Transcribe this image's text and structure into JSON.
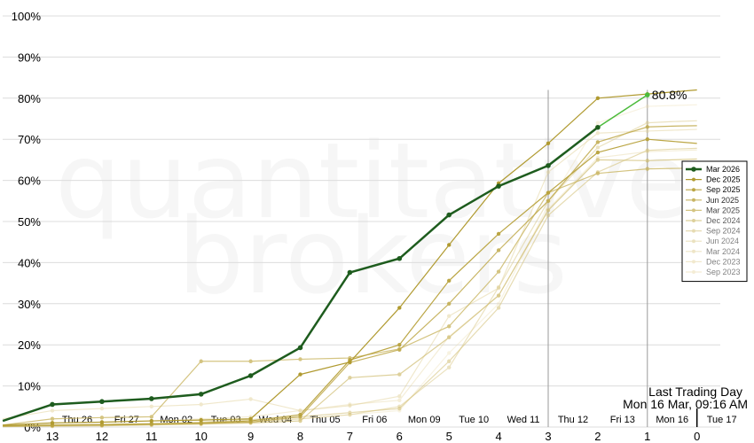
{
  "chart_data": {
    "type": "line",
    "watermark": [
      "quantitative",
      "brokers"
    ],
    "x_ticks": [
      "13",
      "12",
      "11",
      "10",
      "9",
      "8",
      "7",
      "6",
      "5",
      "4",
      "3",
      "2",
      "1",
      "0"
    ],
    "x_range": [
      13.9,
      -0.5
    ],
    "ylim": [
      0,
      100
    ],
    "y_ticks": [
      "0%",
      "10%",
      "20%",
      "30%",
      "40%",
      "50%",
      "60%",
      "70%",
      "80%",
      "90%",
      "100%"
    ],
    "day_labels": [
      {
        "x": 12.5,
        "label": "Thu 26"
      },
      {
        "x": 11.5,
        "label": "Fri 27"
      },
      {
        "x": 10.5,
        "label": "Mon 02"
      },
      {
        "x": 9.5,
        "label": "Tue 03"
      },
      {
        "x": 8.5,
        "label": "Wed 04"
      },
      {
        "x": 7.5,
        "label": "Thu 05"
      },
      {
        "x": 6.5,
        "label": "Fri 06"
      },
      {
        "x": 5.5,
        "label": "Mon 09"
      },
      {
        "x": 4.5,
        "label": "Tue 10"
      },
      {
        "x": 3.5,
        "label": "Wed 11"
      },
      {
        "x": 2.5,
        "label": "Thu 12"
      },
      {
        "x": 1.5,
        "label": "Fri 13"
      },
      {
        "x": 0.5,
        "label": "Mon 16"
      },
      {
        "x": -0.5,
        "label": "Tue 17"
      }
    ],
    "vlines": [
      3,
      1
    ],
    "last_trading_day": {
      "x": 0,
      "title": "Last Trading Day",
      "subtitle": "Mon 16 Mar, 09:16 AM"
    },
    "end_label": "80.8%",
    "series": [
      {
        "name": "Mar 2026",
        "color": "#1e5c1e",
        "bold": true,
        "x": [
          14,
          13,
          12,
          11,
          10,
          9,
          8,
          7,
          6,
          5,
          4,
          3,
          2,
          1
        ],
        "y": [
          1.5,
          5.5,
          6.2,
          6.9,
          8.0,
          12.5,
          19.3,
          37.6,
          41.0,
          51.6,
          58.6,
          63.6,
          72.9,
          80.8
        ],
        "last_segment_color": "#4cbb3c"
      },
      {
        "name": "Dec 2025",
        "color": "#b09a30",
        "opacity": 1.0,
        "x": [
          14,
          13,
          12,
          11,
          10,
          9,
          8,
          7,
          6,
          5,
          4,
          3,
          2,
          1,
          0.5,
          0
        ],
        "y": [
          0.5,
          1.0,
          1.2,
          1.5,
          1.7,
          2.0,
          12.8,
          15.8,
          29.0,
          44.3,
          59.3,
          69.0,
          80.0,
          81.0,
          81.5,
          82.0
        ]
      },
      {
        "name": "Sep 2025",
        "color": "#b8a23c",
        "opacity": 0.95,
        "x": [
          14,
          13,
          12,
          11,
          10,
          9,
          8,
          7,
          6,
          5,
          4,
          3,
          2,
          1,
          0.5,
          0
        ],
        "y": [
          0.3,
          0.5,
          0.6,
          0.8,
          1.0,
          1.5,
          3.0,
          16.3,
          20.0,
          35.6,
          47.0,
          57.0,
          66.8,
          70.0,
          69.5,
          69.0
        ]
      },
      {
        "name": "Jun 2025",
        "color": "#bfa94a",
        "opacity": 0.85,
        "x": [
          14,
          13,
          12,
          11,
          10,
          9,
          8,
          7,
          6,
          5,
          4,
          3,
          2,
          1,
          0.5,
          0
        ],
        "y": [
          0.2,
          0.4,
          0.5,
          0.7,
          0.9,
          1.2,
          2.5,
          15.7,
          18.8,
          30.0,
          43.0,
          55.0,
          69.3,
          73.0,
          73.2,
          73.3
        ]
      },
      {
        "name": "Mar 2025",
        "color": "#c6b158",
        "opacity": 0.75,
        "x": [
          14,
          13,
          12,
          11,
          10,
          9,
          8,
          7,
          6,
          5,
          4,
          3,
          2,
          1,
          0.5,
          0
        ],
        "y": [
          0.5,
          2.0,
          2.3,
          2.5,
          16.0,
          16.0,
          16.5,
          16.8,
          19.0,
          24.5,
          37.8,
          57.0,
          61.7,
          62.8,
          62.9,
          63.0
        ]
      },
      {
        "name": "Dec 2024",
        "color": "#ccb866",
        "opacity": 0.65,
        "x": [
          14,
          13,
          12,
          11,
          10,
          9,
          8,
          7,
          6,
          5,
          4,
          3,
          2,
          1,
          0.5,
          0
        ],
        "y": [
          0.1,
          0.2,
          0.3,
          0.5,
          0.7,
          1.0,
          1.5,
          12.0,
          12.8,
          21.8,
          32.0,
          52.7,
          65.0,
          64.8,
          65.0,
          65.2
        ]
      },
      {
        "name": "Sep 2024",
        "color": "#d2bf74",
        "opacity": 0.55,
        "x": [
          14,
          13,
          12,
          11,
          10,
          9,
          8,
          7,
          6,
          5,
          4,
          3,
          2,
          1,
          0.5,
          0
        ],
        "y": [
          0.3,
          0.5,
          0.6,
          0.8,
          1.2,
          1.8,
          2.5,
          3.5,
          4.5,
          16.0,
          29.0,
          51.5,
          62.0,
          67.3,
          67.6,
          67.8
        ]
      },
      {
        "name": "Jun 2024",
        "color": "#d8c682",
        "opacity": 0.5,
        "x": [
          14,
          13,
          12,
          11,
          10,
          9,
          8,
          7,
          6,
          5,
          4,
          3,
          2,
          1,
          0.5,
          0
        ],
        "y": [
          0.2,
          0.4,
          0.5,
          0.6,
          0.9,
          1.2,
          2.0,
          3.0,
          5.0,
          14.5,
          34.0,
          55.0,
          68.0,
          74.0,
          74.3,
          74.5
        ]
      },
      {
        "name": "Mar 2024",
        "color": "#decd90",
        "opacity": 0.45,
        "x": [
          14,
          13,
          12,
          11,
          10,
          9,
          8,
          7,
          6,
          5,
          4,
          3,
          2,
          1,
          0.5,
          0
        ],
        "y": [
          2.0,
          4.0,
          4.5,
          5.0,
          5.5,
          6.8,
          4.0,
          5.2,
          7.5,
          27.0,
          33.8,
          62.0,
          71.5,
          72.0,
          72.2,
          72.4
        ]
      },
      {
        "name": "Dec 2023",
        "color": "#e4d49e",
        "opacity": 0.4,
        "x": [
          14,
          13,
          12,
          11,
          10,
          9,
          8,
          7,
          6,
          5,
          4,
          3,
          2,
          1,
          0.5,
          0
        ],
        "y": [
          0.5,
          1.0,
          1.2,
          1.5,
          2.0,
          2.5,
          4.0,
          5.5,
          6.5,
          22.0,
          32.0,
          53.0,
          65.5,
          67.0,
          67.2,
          67.4
        ]
      },
      {
        "name": "Sep 2023",
        "color": "#eadbac",
        "opacity": 0.35,
        "x": [
          14,
          13,
          12,
          11,
          10,
          9,
          8,
          7,
          6,
          5,
          4,
          3,
          2,
          1,
          0.5,
          0
        ],
        "y": [
          0.2,
          0.4,
          0.6,
          0.8,
          1.0,
          1.5,
          2.0,
          3.0,
          4.0,
          18.0,
          30.0,
          54.0,
          74.0,
          78.0,
          78.2,
          78.4
        ]
      }
    ],
    "legend_position": "right"
  }
}
